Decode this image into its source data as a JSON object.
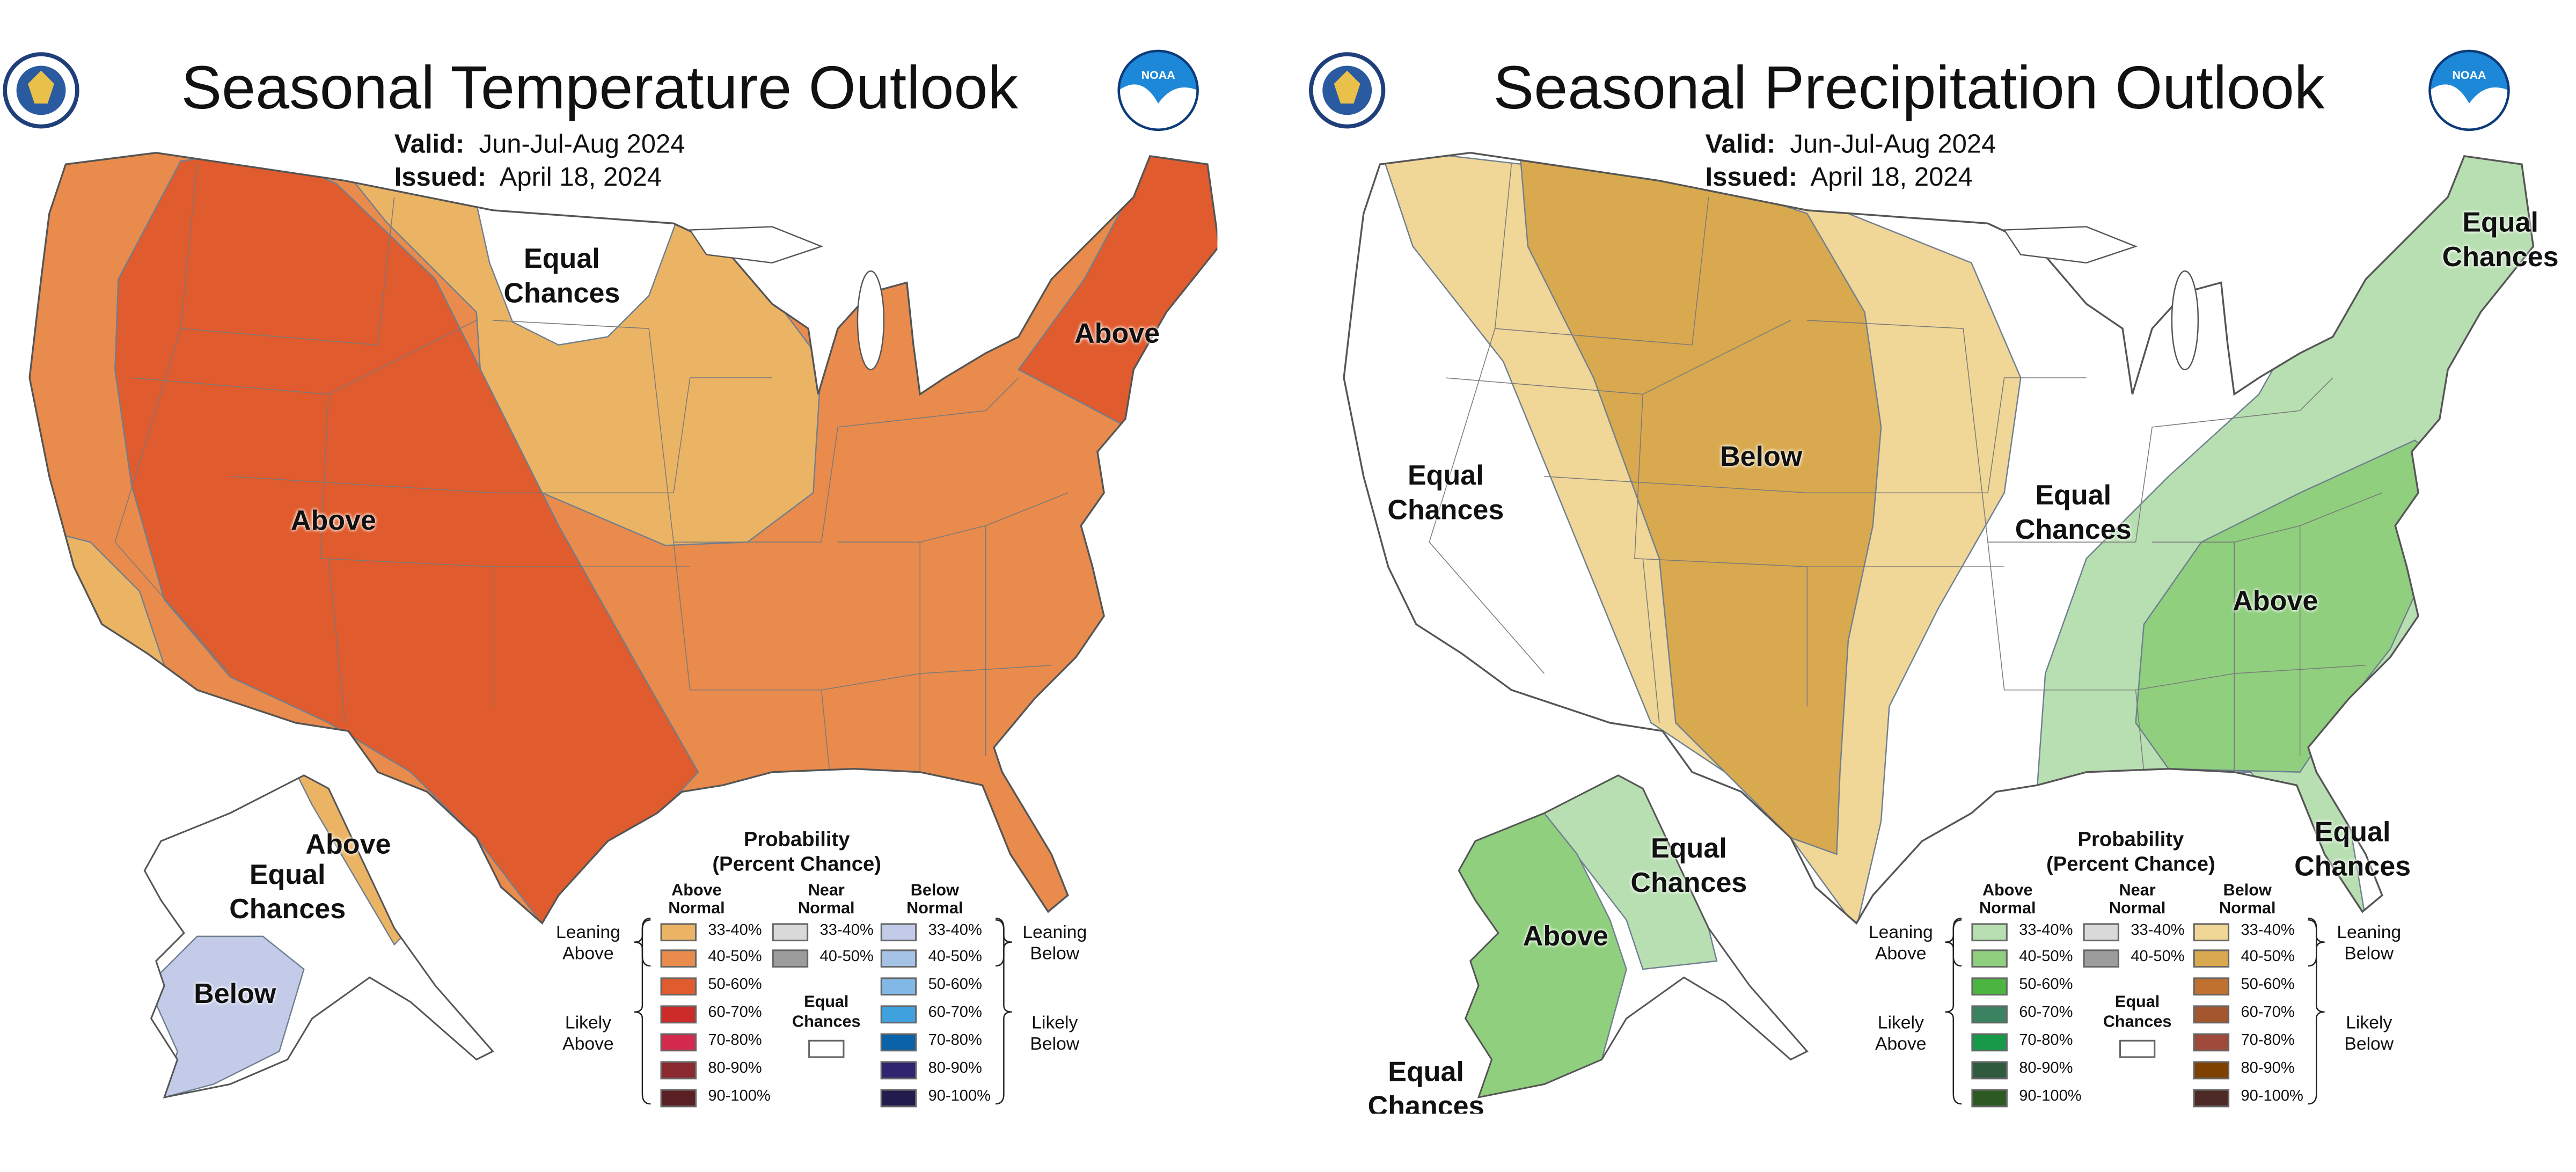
{
  "panels": [
    {
      "title": "Seasonal Temperature Outlook",
      "valid_label": "Valid:",
      "valid_value": "Jun-Jul-Aug 2024",
      "issued_label": "Issued:",
      "issued_value": "April 18, 2024",
      "map_labels": [
        "Equal\nChances",
        "Above",
        "Above",
        "Above",
        "Equal\nChances",
        "Below"
      ],
      "colors": {
        "lean_above_33_40": "#ebb465",
        "lean_above_40_50": "#e88b4c",
        "likely_above_50_60": "#e05b2d",
        "lean_below_33_40": "#c3cbe9",
        "equal_chances": "#ffffff"
      },
      "legend": {
        "title": "Probability\n(Percent Chance)",
        "col_above": "Above\nNormal",
        "col_near": "Near\nNormal",
        "col_below": "Below\nNormal",
        "leaning_above": "Leaning\nAbove",
        "likely_above": "Likely\nAbove",
        "leaning_below": "Leaning\nBelow",
        "likely_below": "Likely\nBelow",
        "equal_chances": "Equal\nChances",
        "above": [
          {
            "range": "33-40%",
            "color": "#ebb465"
          },
          {
            "range": "40-50%",
            "color": "#e88b4c"
          },
          {
            "range": "50-60%",
            "color": "#e05b2d"
          },
          {
            "range": "60-70%",
            "color": "#cc2b28"
          },
          {
            "range": "70-80%",
            "color": "#d32a4e"
          },
          {
            "range": "80-90%",
            "color": "#8a2a30"
          },
          {
            "range": "90-100%",
            "color": "#5a1f22"
          }
        ],
        "near": [
          {
            "range": "33-40%",
            "color": "#d9d9d9"
          },
          {
            "range": "40-50%",
            "color": "#9c9c9c"
          }
        ],
        "below": [
          {
            "range": "33-40%",
            "color": "#c3cbe9"
          },
          {
            "range": "40-50%",
            "color": "#a5c3e6"
          },
          {
            "range": "50-60%",
            "color": "#82b8e5"
          },
          {
            "range": "60-70%",
            "color": "#3fa2de"
          },
          {
            "range": "70-80%",
            "color": "#0a62a8"
          },
          {
            "range": "80-90%",
            "color": "#30236f"
          },
          {
            "range": "90-100%",
            "color": "#211b4e"
          }
        ]
      }
    },
    {
      "title": "Seasonal Precipitation Outlook",
      "valid_label": "Valid:",
      "valid_value": "Jun-Jul-Aug 2024",
      "issued_label": "Issued:",
      "issued_value": "April 18, 2024",
      "map_labels": [
        "Equal\nChances",
        "Below",
        "Equal\nChances",
        "Equal\nChances",
        "Above",
        "Equal\nChances",
        "Equal\nChances",
        "Above",
        "Equal\nChances"
      ],
      "colors": {
        "lean_below_33_40": "#f0d697",
        "lean_below_40_50": "#d9a94f",
        "lean_above_33_40": "#b8dfb1",
        "lean_above_40_50": "#8fcf7e",
        "equal_chances": "#ffffff"
      },
      "legend": {
        "title": "Probability\n(Percent Chance)",
        "col_above": "Above\nNormal",
        "col_near": "Near\nNormal",
        "col_below": "Below\nNormal",
        "leaning_above": "Leaning\nAbove",
        "likely_above": "Likely\nAbove",
        "leaning_below": "Leaning\nBelow",
        "likely_below": "Likely\nBelow",
        "equal_chances": "Equal\nChances",
        "above": [
          {
            "range": "33-40%",
            "color": "#b8dfb1"
          },
          {
            "range": "40-50%",
            "color": "#8fcf7e"
          },
          {
            "range": "50-60%",
            "color": "#4cb541"
          },
          {
            "range": "60-70%",
            "color": "#3a8260"
          },
          {
            "range": "70-80%",
            "color": "#17994a"
          },
          {
            "range": "80-90%",
            "color": "#2f5a3e"
          },
          {
            "range": "90-100%",
            "color": "#2c5a22"
          }
        ],
        "near": [
          {
            "range": "33-40%",
            "color": "#d9d9d9"
          },
          {
            "range": "40-50%",
            "color": "#9c9c9c"
          }
        ],
        "below": [
          {
            "range": "33-40%",
            "color": "#f0d697"
          },
          {
            "range": "40-50%",
            "color": "#d9a94f"
          },
          {
            "range": "50-60%",
            "color": "#c0702f"
          },
          {
            "range": "60-70%",
            "color": "#a4562e"
          },
          {
            "range": "70-80%",
            "color": "#9f4a3a"
          },
          {
            "range": "80-90%",
            "color": "#7f4100"
          },
          {
            "range": "90-100%",
            "color": "#4e2a26"
          }
        ]
      }
    }
  ]
}
